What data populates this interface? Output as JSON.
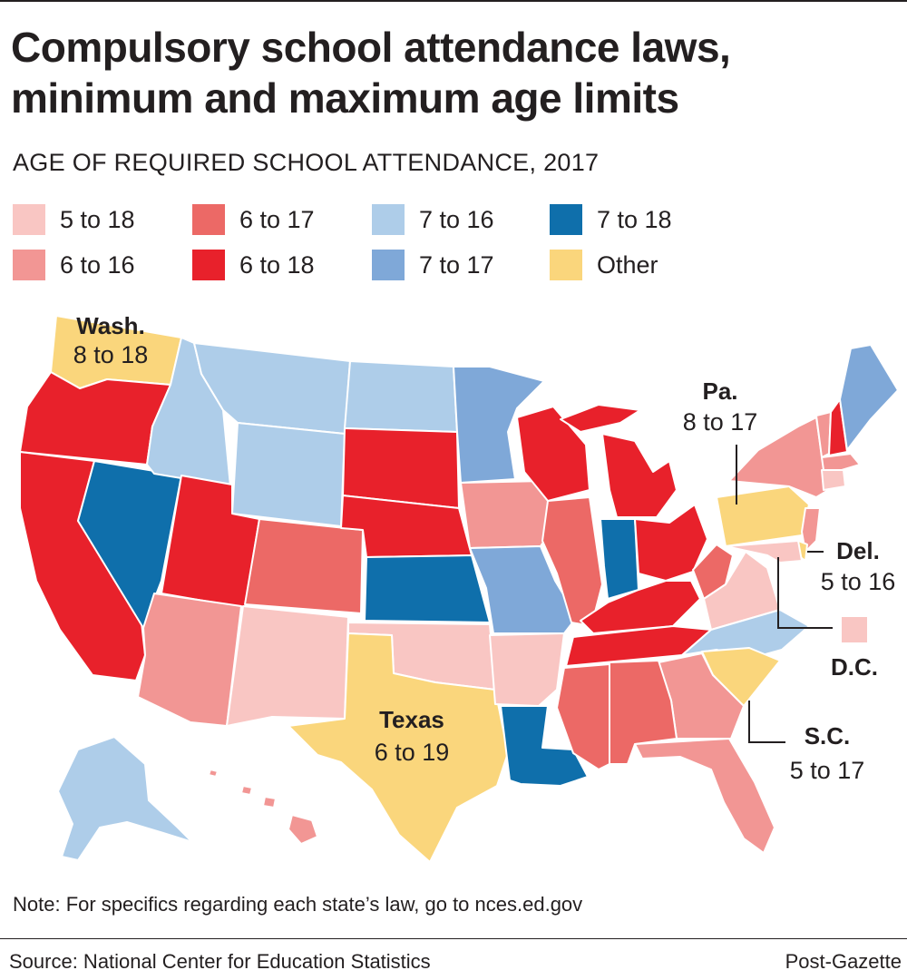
{
  "title_line1": "Compulsory school attendance laws,",
  "title_line2": "minimum and maximum age limits",
  "subtitle": "AGE OF REQUIRED SCHOOL ATTENDANCE, 2017",
  "legend": [
    {
      "label": "5 to 18",
      "color": "#f9c6c3"
    },
    {
      "label": "6 to 16",
      "color": "#f29694"
    },
    {
      "label": "6 to 17",
      "color": "#ec6966"
    },
    {
      "label": "6 to 18",
      "color": "#e8212b"
    },
    {
      "label": "7 to 16",
      "color": "#aecde9"
    },
    {
      "label": "7 to 17",
      "color": "#7fa8d8"
    },
    {
      "label": "7 to 18",
      "color": "#0f6fab"
    },
    {
      "label": "Other",
      "color": "#fad67c"
    }
  ],
  "callouts": {
    "wash": {
      "name": "Wash.",
      "range": "8 to 18"
    },
    "pa": {
      "name": "Pa.",
      "range": "8 to 17"
    },
    "del": {
      "name": "Del.",
      "range": "5 to 16"
    },
    "dc": {
      "name": "D.C."
    },
    "sc": {
      "name": "S.C.",
      "range": "5 to 17"
    },
    "texas": {
      "name": "Texas",
      "range": "6 to 19"
    }
  },
  "note": "Note: For specifics regarding each state’s law, go to nces.ed.gov",
  "source": "Source: National Center for Education Statistics",
  "credit": "Post-Gazette"
}
